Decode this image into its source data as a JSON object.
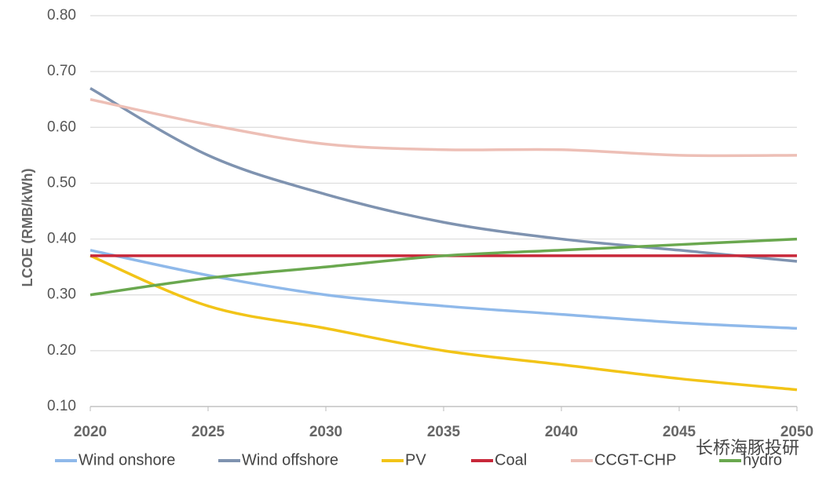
{
  "chart_data": {
    "type": "line",
    "y_label": "LCOE (RMB/kWh)",
    "x": [
      2020,
      2025,
      2030,
      2035,
      2040,
      2045,
      2050
    ],
    "xlim": [
      2020,
      2050
    ],
    "xticks": [
      2020,
      2025,
      2030,
      2035,
      2040,
      2045,
      2050
    ],
    "ylim": [
      0.1,
      0.8
    ],
    "yticks": [
      {
        "value": 0.1,
        "label": "0.10"
      },
      {
        "value": 0.2,
        "label": "0.20"
      },
      {
        "value": 0.3,
        "label": "0.30"
      },
      {
        "value": 0.4,
        "label": "0.40"
      },
      {
        "value": 0.5,
        "label": "0.50"
      },
      {
        "value": 0.6,
        "label": "0.60"
      },
      {
        "value": 0.7,
        "label": "0.70"
      },
      {
        "value": 0.8,
        "label": "0.80"
      }
    ],
    "grid": true,
    "legend": "bottom",
    "series": [
      {
        "name": "Wind onshore",
        "color": "#8fb9ea",
        "values": [
          0.38,
          0.335,
          0.3,
          0.28,
          0.265,
          0.25,
          0.24
        ]
      },
      {
        "name": "Wind offshore",
        "color": "#7f93b0",
        "values": [
          0.67,
          0.55,
          0.48,
          0.43,
          0.4,
          0.38,
          0.36
        ]
      },
      {
        "name": "PV",
        "color": "#f2c418",
        "values": [
          0.37,
          0.28,
          0.24,
          0.2,
          0.175,
          0.15,
          0.13
        ]
      },
      {
        "name": "Coal",
        "color": "#c8283a",
        "values": [
          0.37,
          0.37,
          0.37,
          0.37,
          0.37,
          0.37,
          0.37
        ]
      },
      {
        "name": "CCGT-CHP",
        "color": "#edbfb6",
        "values": [
          0.65,
          0.605,
          0.57,
          0.56,
          0.56,
          0.55,
          0.55
        ]
      },
      {
        "name": "hydro",
        "color": "#6aa84f",
        "values": [
          0.3,
          0.33,
          0.35,
          0.37,
          0.38,
          0.39,
          0.4
        ]
      }
    ],
    "watermark": "长桥海豚投研"
  }
}
